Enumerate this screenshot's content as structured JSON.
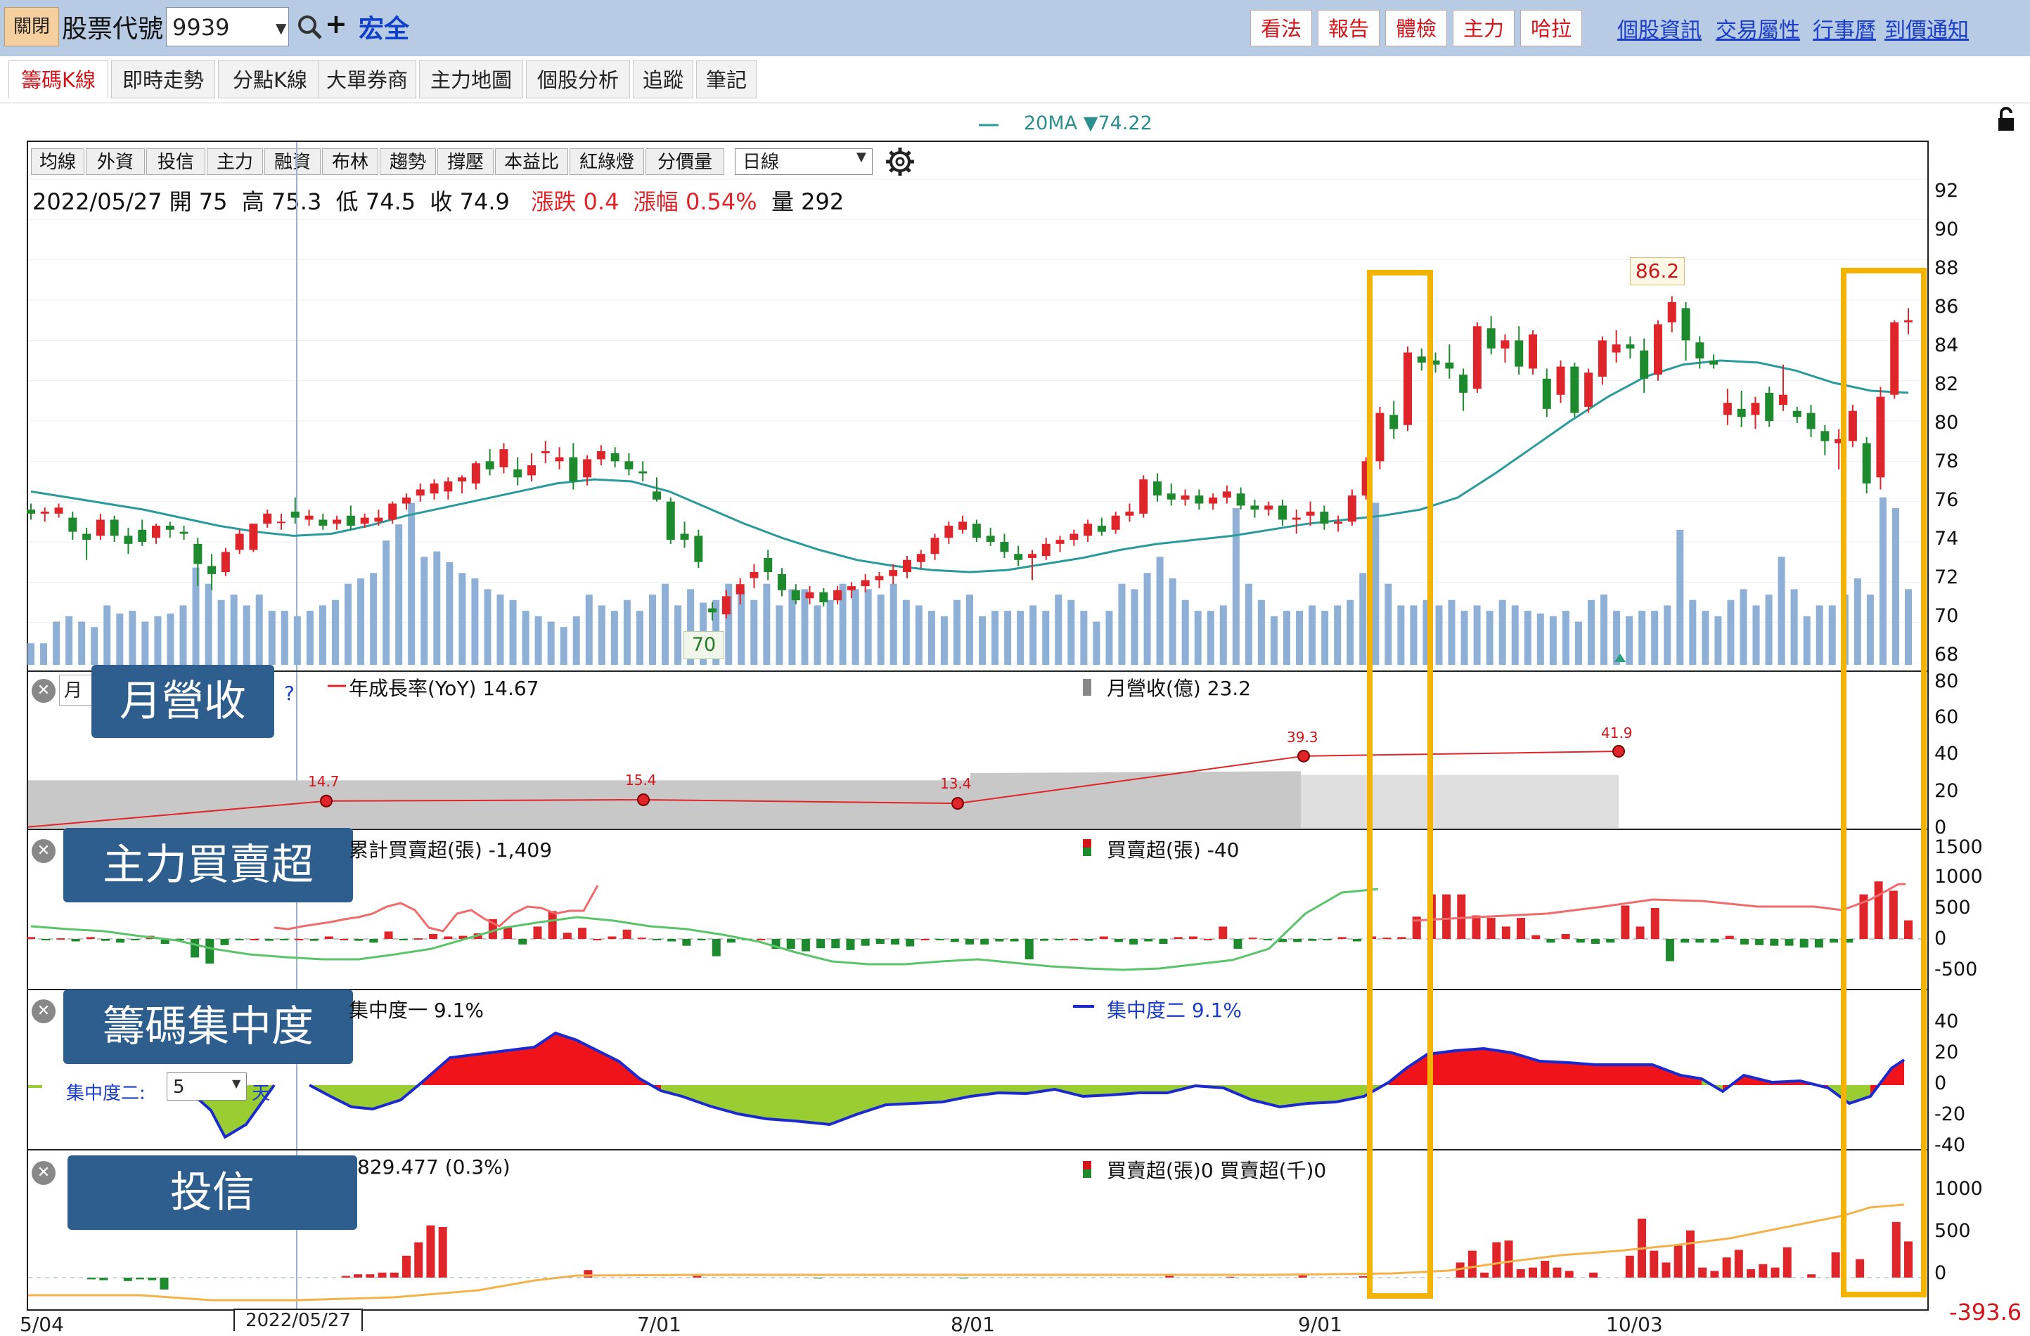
{
  "topbar": {
    "close_label": "關閉",
    "code_label": "股票代號",
    "code_value": "9939",
    "stock_name": "宏全",
    "buttons": [
      "看法",
      "報告",
      "體檢",
      "主力",
      "哈拉"
    ],
    "links": [
      "個股資訊",
      "交易屬性",
      "行事曆",
      "到價通知"
    ]
  },
  "tabs": [
    "籌碼K線",
    "即時走勢",
    "分點K線",
    "大單券商",
    "主力地圖",
    "個股分析",
    "追蹤",
    "筆記"
  ],
  "active_tab": "籌碼K線",
  "ma": {
    "label": "20MA ▼74.22"
  },
  "toolbar": {
    "buttons": [
      "均線",
      "外資",
      "投信",
      "主力",
      "融資",
      "布林",
      "趨勢",
      "撐壓",
      "本益比",
      "紅綠燈",
      "分價量"
    ],
    "period": "日線"
  },
  "info": {
    "date": "2022/05/27",
    "open_label": "開",
    "open": "75",
    "high_label": "高",
    "high": "75.3",
    "low_label": "低",
    "low": "74.5",
    "close_label": "收",
    "close": "74.9",
    "change": "漲跌 0.4",
    "change_pct": "漲幅 0.54%",
    "volume_label": "量",
    "volume": "292"
  },
  "annotations": {
    "max_price": "86.2",
    "min_price": "70"
  },
  "price_axis": [
    "92",
    "90",
    "88",
    "86",
    "84",
    "82",
    "80",
    "78",
    "76",
    "74",
    "72",
    "70",
    "68"
  ],
  "revenue": {
    "label": "月營收",
    "legend_yoy": "年成長率(YoY) 14.67",
    "legend_rev": "月營收(億) 23.2",
    "axis": [
      "80",
      "60",
      "40",
      "20",
      "0"
    ],
    "points": [
      {
        "label": "14.7",
        "value": 14.7
      },
      {
        "label": "15.4",
        "value": 15.4
      },
      {
        "label": "13.4",
        "value": 13.4
      },
      {
        "label": "39.3",
        "value": 39.3
      },
      {
        "label": "41.9",
        "value": 41.9
      }
    ],
    "dropdown_prefix": "月",
    "help": "?"
  },
  "main_force": {
    "label": "主力買賣超",
    "legend_cum": "累計買賣超(張) -1,409",
    "legend_daily": "買賣超(張) -40",
    "axis": [
      "1500",
      "1000",
      "500",
      "0",
      "-500"
    ]
  },
  "concentration": {
    "label": "籌碼集中度",
    "legend_1": "集中度一 9.1%",
    "legend_2": "集中度二 9.1%",
    "select_label": "集中度二:",
    "select_value": "5",
    "unit": "天",
    "axis": [
      "40",
      "20",
      "0",
      "-20",
      "-40"
    ]
  },
  "trust": {
    "label": "投信",
    "legend_left": "829.477 (0.3%)",
    "legend_right": "買賣超(張)0 買賣超(千)0",
    "axis": [
      "1000",
      "500",
      "0"
    ],
    "last_value": "-393.6"
  },
  "x_axis": [
    "5/04",
    "2022/05/27",
    "7/01",
    "8/01",
    "9/01",
    "10/03"
  ],
  "colors": {
    "up": "#e0252a",
    "down": "#1e8a2e",
    "ma": "#2b9a9a",
    "volume": "#8fb0d6",
    "highlight": "#f2b400",
    "label_bg": "#2e5e8e"
  },
  "chart_data": {
    "type": "candlestick",
    "ylim": [
      67.5,
      92.5
    ],
    "candles": [
      {
        "o": 75.6,
        "h": 75.9,
        "l": 75.1,
        "c": 75.4
      },
      {
        "o": 75.4,
        "h": 75.7,
        "l": 75.0,
        "c": 75.5
      },
      {
        "o": 75.4,
        "h": 75.9,
        "l": 75.2,
        "c": 75.7
      },
      {
        "o": 75.2,
        "h": 75.5,
        "l": 74.1,
        "c": 74.5
      },
      {
        "o": 74.4,
        "h": 74.7,
        "l": 73.1,
        "c": 74.1
      },
      {
        "o": 74.3,
        "h": 75.4,
        "l": 74.1,
        "c": 75.1
      },
      {
        "o": 75.1,
        "h": 75.3,
        "l": 74.0,
        "c": 74.3
      },
      {
        "o": 74.3,
        "h": 74.7,
        "l": 73.4,
        "c": 73.9
      },
      {
        "o": 74.6,
        "h": 75.1,
        "l": 73.8,
        "c": 74.0
      },
      {
        "o": 74.2,
        "h": 74.9,
        "l": 73.9,
        "c": 74.8
      },
      {
        "o": 74.8,
        "h": 75.0,
        "l": 74.2,
        "c": 74.6
      },
      {
        "o": 74.5,
        "h": 74.8,
        "l": 74.1,
        "c": 74.4
      },
      {
        "o": 73.9,
        "h": 74.2,
        "l": 71.8,
        "c": 72.9
      },
      {
        "o": 72.8,
        "h": 73.4,
        "l": 71.6,
        "c": 72.4
      },
      {
        "o": 72.5,
        "h": 73.7,
        "l": 72.3,
        "c": 73.5
      },
      {
        "o": 73.6,
        "h": 74.6,
        "l": 73.4,
        "c": 74.4
      },
      {
        "o": 73.6,
        "h": 74.9,
        "l": 73.5,
        "c": 74.9
      },
      {
        "o": 74.9,
        "h": 75.6,
        "l": 74.7,
        "c": 75.4
      },
      {
        "o": 75.0,
        "h": 75.4,
        "l": 74.6,
        "c": 75.0
      },
      {
        "o": 75.5,
        "h": 76.2,
        "l": 74.9,
        "c": 75.2
      },
      {
        "o": 75.1,
        "h": 75.6,
        "l": 74.8,
        "c": 75.3
      },
      {
        "o": 75.1,
        "h": 75.4,
        "l": 74.6,
        "c": 74.8
      },
      {
        "o": 74.9,
        "h": 75.3,
        "l": 74.6,
        "c": 75.1
      },
      {
        "o": 75.3,
        "h": 75.8,
        "l": 74.6,
        "c": 74.8
      },
      {
        "o": 74.9,
        "h": 75.4,
        "l": 74.7,
        "c": 75.2
      },
      {
        "o": 75.0,
        "h": 75.6,
        "l": 74.8,
        "c": 75.2
      },
      {
        "o": 75.1,
        "h": 76.0,
        "l": 74.9,
        "c": 75.9
      },
      {
        "o": 75.9,
        "h": 76.4,
        "l": 75.6,
        "c": 76.2
      },
      {
        "o": 76.3,
        "h": 76.9,
        "l": 76.0,
        "c": 76.6
      },
      {
        "o": 76.4,
        "h": 77.1,
        "l": 76.1,
        "c": 76.9
      },
      {
        "o": 76.5,
        "h": 77.2,
        "l": 76.1,
        "c": 77.0
      },
      {
        "o": 77.0,
        "h": 77.3,
        "l": 76.4,
        "c": 77.2
      },
      {
        "o": 76.9,
        "h": 78.0,
        "l": 76.6,
        "c": 77.9
      },
      {
        "o": 78.0,
        "h": 78.6,
        "l": 77.3,
        "c": 77.6
      },
      {
        "o": 77.7,
        "h": 78.9,
        "l": 77.4,
        "c": 78.6
      },
      {
        "o": 77.6,
        "h": 78.2,
        "l": 76.8,
        "c": 77.2
      },
      {
        "o": 77.3,
        "h": 78.4,
        "l": 77.0,
        "c": 77.8
      },
      {
        "o": 78.4,
        "h": 79.0,
        "l": 77.9,
        "c": 78.5
      },
      {
        "o": 78.0,
        "h": 78.7,
        "l": 77.6,
        "c": 78.2
      },
      {
        "o": 78.2,
        "h": 78.9,
        "l": 76.6,
        "c": 77.0
      },
      {
        "o": 77.2,
        "h": 78.3,
        "l": 76.8,
        "c": 78.1
      },
      {
        "o": 78.1,
        "h": 78.8,
        "l": 77.8,
        "c": 78.5
      },
      {
        "o": 78.4,
        "h": 78.7,
        "l": 77.7,
        "c": 78.0
      },
      {
        "o": 78.0,
        "h": 78.4,
        "l": 77.3,
        "c": 77.6
      },
      {
        "o": 77.5,
        "h": 78.0,
        "l": 77.0,
        "c": 77.4
      },
      {
        "o": 76.5,
        "h": 77.2,
        "l": 76.0,
        "c": 76.1
      },
      {
        "o": 76.0,
        "h": 76.2,
        "l": 73.9,
        "c": 74.1
      },
      {
        "o": 74.4,
        "h": 75.0,
        "l": 73.7,
        "c": 74.1
      },
      {
        "o": 74.3,
        "h": 74.6,
        "l": 72.7,
        "c": 73.0
      },
      {
        "o": 70.7,
        "h": 71.0,
        "l": 70.1,
        "c": 70.5
      },
      {
        "o": 70.4,
        "h": 71.6,
        "l": 70.2,
        "c": 71.3
      },
      {
        "o": 71.4,
        "h": 72.2,
        "l": 70.9,
        "c": 71.9
      },
      {
        "o": 72.2,
        "h": 72.9,
        "l": 71.7,
        "c": 72.5
      },
      {
        "o": 73.2,
        "h": 73.6,
        "l": 72.1,
        "c": 72.5
      },
      {
        "o": 72.4,
        "h": 72.7,
        "l": 71.3,
        "c": 71.6
      },
      {
        "o": 71.6,
        "h": 71.9,
        "l": 70.9,
        "c": 71.1
      },
      {
        "o": 71.2,
        "h": 71.8,
        "l": 70.9,
        "c": 71.5
      },
      {
        "o": 71.5,
        "h": 71.7,
        "l": 70.8,
        "c": 71.0
      },
      {
        "o": 71.1,
        "h": 71.8,
        "l": 70.9,
        "c": 71.6
      },
      {
        "o": 71.6,
        "h": 72.0,
        "l": 71.2,
        "c": 71.8
      },
      {
        "o": 71.8,
        "h": 72.4,
        "l": 71.5,
        "c": 72.1
      },
      {
        "o": 72.1,
        "h": 72.5,
        "l": 71.7,
        "c": 72.3
      },
      {
        "o": 72.3,
        "h": 72.9,
        "l": 71.9,
        "c": 72.6
      },
      {
        "o": 72.5,
        "h": 73.3,
        "l": 72.2,
        "c": 73.1
      },
      {
        "o": 73.0,
        "h": 73.6,
        "l": 72.7,
        "c": 73.4
      },
      {
        "o": 73.4,
        "h": 74.4,
        "l": 73.1,
        "c": 74.2
      },
      {
        "o": 74.2,
        "h": 75.0,
        "l": 73.9,
        "c": 74.8
      },
      {
        "o": 74.6,
        "h": 75.3,
        "l": 74.4,
        "c": 75.0
      },
      {
        "o": 74.9,
        "h": 75.1,
        "l": 74.0,
        "c": 74.2
      },
      {
        "o": 74.3,
        "h": 74.7,
        "l": 73.8,
        "c": 74.0
      },
      {
        "o": 74.0,
        "h": 74.4,
        "l": 73.2,
        "c": 73.5
      },
      {
        "o": 73.4,
        "h": 73.8,
        "l": 72.8,
        "c": 73.1
      },
      {
        "o": 73.2,
        "h": 73.6,
        "l": 72.1,
        "c": 73.4
      },
      {
        "o": 73.3,
        "h": 74.2,
        "l": 73.1,
        "c": 73.9
      },
      {
        "o": 73.9,
        "h": 74.3,
        "l": 73.5,
        "c": 74.1
      },
      {
        "o": 74.1,
        "h": 74.6,
        "l": 73.8,
        "c": 74.4
      },
      {
        "o": 74.3,
        "h": 75.1,
        "l": 74.0,
        "c": 74.9
      },
      {
        "o": 74.8,
        "h": 75.2,
        "l": 74.3,
        "c": 74.5
      },
      {
        "o": 74.6,
        "h": 75.5,
        "l": 74.4,
        "c": 75.3
      },
      {
        "o": 75.3,
        "h": 75.9,
        "l": 75.0,
        "c": 75.5
      },
      {
        "o": 75.4,
        "h": 77.3,
        "l": 75.2,
        "c": 77.1
      },
      {
        "o": 77.0,
        "h": 77.4,
        "l": 76.0,
        "c": 76.3
      },
      {
        "o": 76.4,
        "h": 76.9,
        "l": 75.8,
        "c": 76.1
      },
      {
        "o": 76.1,
        "h": 76.6,
        "l": 75.8,
        "c": 76.3
      },
      {
        "o": 76.3,
        "h": 76.6,
        "l": 75.6,
        "c": 75.9
      },
      {
        "o": 75.9,
        "h": 76.4,
        "l": 75.6,
        "c": 76.2
      },
      {
        "o": 76.2,
        "h": 76.8,
        "l": 75.9,
        "c": 76.5
      },
      {
        "o": 76.4,
        "h": 76.7,
        "l": 75.6,
        "c": 75.8
      },
      {
        "o": 75.8,
        "h": 76.1,
        "l": 75.2,
        "c": 75.6
      },
      {
        "o": 75.6,
        "h": 76.0,
        "l": 75.3,
        "c": 75.8
      },
      {
        "o": 75.8,
        "h": 76.1,
        "l": 74.8,
        "c": 75.1
      },
      {
        "o": 75.1,
        "h": 75.6,
        "l": 74.4,
        "c": 75.2
      },
      {
        "o": 75.3,
        "h": 76.0,
        "l": 74.8,
        "c": 75.5
      },
      {
        "o": 75.5,
        "h": 75.8,
        "l": 74.6,
        "c": 74.9
      },
      {
        "o": 74.9,
        "h": 75.3,
        "l": 74.5,
        "c": 75.0
      },
      {
        "o": 75.0,
        "h": 76.6,
        "l": 74.8,
        "c": 76.3
      },
      {
        "o": 76.3,
        "h": 78.2,
        "l": 76.1,
        "c": 78.0
      },
      {
        "o": 78.0,
        "h": 80.7,
        "l": 77.6,
        "c": 80.4
      },
      {
        "o": 80.3,
        "h": 81.0,
        "l": 79.1,
        "c": 79.6
      },
      {
        "o": 79.8,
        "h": 83.7,
        "l": 79.5,
        "c": 83.4
      },
      {
        "o": 83.2,
        "h": 83.6,
        "l": 82.5,
        "c": 82.9
      },
      {
        "o": 83.0,
        "h": 83.4,
        "l": 82.4,
        "c": 82.8
      },
      {
        "o": 82.9,
        "h": 83.8,
        "l": 82.1,
        "c": 82.6
      },
      {
        "o": 82.3,
        "h": 82.6,
        "l": 80.5,
        "c": 81.4
      },
      {
        "o": 81.6,
        "h": 84.9,
        "l": 81.4,
        "c": 84.7
      },
      {
        "o": 84.6,
        "h": 85.2,
        "l": 83.3,
        "c": 83.6
      },
      {
        "o": 83.6,
        "h": 84.3,
        "l": 82.9,
        "c": 84.0
      },
      {
        "o": 84.0,
        "h": 84.7,
        "l": 82.3,
        "c": 82.7
      },
      {
        "o": 82.6,
        "h": 84.5,
        "l": 82.3,
        "c": 84.3
      },
      {
        "o": 82.1,
        "h": 82.6,
        "l": 80.2,
        "c": 80.6
      },
      {
        "o": 81.3,
        "h": 83.0,
        "l": 80.9,
        "c": 82.7
      },
      {
        "o": 82.7,
        "h": 82.9,
        "l": 80.2,
        "c": 80.4
      },
      {
        "o": 80.7,
        "h": 82.6,
        "l": 80.4,
        "c": 82.4
      },
      {
        "o": 82.2,
        "h": 84.2,
        "l": 81.8,
        "c": 84.0
      },
      {
        "o": 83.4,
        "h": 84.5,
        "l": 82.9,
        "c": 83.8
      },
      {
        "o": 83.8,
        "h": 84.2,
        "l": 83.1,
        "c": 83.6
      },
      {
        "o": 83.5,
        "h": 84.1,
        "l": 81.4,
        "c": 82.1
      },
      {
        "o": 82.3,
        "h": 85.0,
        "l": 82.0,
        "c": 84.8
      },
      {
        "o": 84.9,
        "h": 86.2,
        "l": 84.4,
        "c": 85.9
      },
      {
        "o": 85.6,
        "h": 85.9,
        "l": 83.0,
        "c": 84.0
      },
      {
        "o": 83.9,
        "h": 84.2,
        "l": 82.6,
        "c": 83.1
      },
      {
        "o": 83.0,
        "h": 83.3,
        "l": 82.6,
        "c": 82.8
      },
      {
        "o": 80.3,
        "h": 81.6,
        "l": 79.8,
        "c": 80.9
      },
      {
        "o": 80.6,
        "h": 81.5,
        "l": 79.7,
        "c": 80.2
      },
      {
        "o": 80.3,
        "h": 81.2,
        "l": 79.6,
        "c": 80.9
      },
      {
        "o": 81.4,
        "h": 81.7,
        "l": 79.7,
        "c": 80.0
      },
      {
        "o": 80.8,
        "h": 82.8,
        "l": 80.5,
        "c": 81.3
      },
      {
        "o": 80.5,
        "h": 80.7,
        "l": 79.9,
        "c": 80.2
      },
      {
        "o": 80.4,
        "h": 80.8,
        "l": 79.2,
        "c": 79.6
      },
      {
        "o": 79.5,
        "h": 79.8,
        "l": 78.3,
        "c": 79.0
      },
      {
        "o": 78.9,
        "h": 79.6,
        "l": 77.6,
        "c": 79.1
      },
      {
        "o": 79.0,
        "h": 80.8,
        "l": 78.7,
        "c": 80.5
      },
      {
        "o": 78.9,
        "h": 79.2,
        "l": 76.4,
        "c": 76.9
      },
      {
        "o": 77.2,
        "h": 81.7,
        "l": 76.6,
        "c": 81.2
      },
      {
        "o": 81.3,
        "h": 85.0,
        "l": 81.1,
        "c": 84.9
      },
      {
        "o": 84.9,
        "h": 85.6,
        "l": 84.3,
        "c": 85.0
      }
    ],
    "ma20": [
      76.5,
      76.2,
      75.9,
      75.6,
      75.2,
      74.8,
      74.5,
      74.3,
      74.4,
      74.8,
      75.3,
      75.7,
      76.1,
      76.5,
      76.9,
      77.1,
      77.0,
      76.5,
      75.7,
      74.9,
      74.2,
      73.6,
      73.1,
      72.8,
      72.6,
      72.5,
      72.6,
      72.9,
      73.2,
      73.6,
      73.9,
      74.1,
      74.3,
      74.6,
      74.9,
      75.1,
      75.3,
      75.6,
      76.2,
      77.4,
      78.7,
      80.0,
      81.2,
      82.2,
      82.8,
      83.0,
      82.9,
      82.5,
      81.9,
      81.5,
      81.4
    ],
    "volume": [
      40,
      40,
      80,
      90,
      80,
      70,
      110,
      95,
      100,
      80,
      90,
      95,
      110,
      180,
      150,
      120,
      130,
      110,
      130,
      100,
      100,
      90,
      100,
      110,
      120,
      150,
      160,
      170,
      230,
      260,
      300,
      200,
      210,
      190,
      170,
      160,
      140,
      130,
      120,
      100,
      90,
      80,
      70,
      90,
      130,
      110,
      100,
      120,
      100,
      130,
      150,
      110,
      140,
      115,
      120,
      150,
      140,
      120,
      150,
      110,
      140,
      140,
      110,
      120,
      150,
      140,
      140,
      130,
      150,
      120,
      110,
      100,
      90,
      120,
      130,
      90,
      100,
      100,
      100,
      110,
      100,
      130,
      120,
      100,
      80,
      100,
      150,
      140,
      170,
      200,
      160,
      120,
      100,
      100,
      110,
      290,
      150,
      120,
      90,
      100,
      100,
      110,
      100,
      110,
      120,
      170,
      300,
      150,
      110,
      110,
      120,
      110,
      120,
      100,
      110,
      100,
      120,
      110,
      100,
      95,
      90,
      100,
      80,
      120,
      130,
      100,
      90,
      100,
      100,
      110,
      250,
      120,
      100,
      90,
      120,
      140,
      110,
      130,
      200,
      140,
      90,
      110,
      110,
      130,
      160,
      130,
      310,
      290,
      140
    ],
    "revenue_yoy": [
      {
        "x": "5/27",
        "y": 14.7
      },
      {
        "x": "6",
        "y": 15.4
      },
      {
        "x": "7",
        "y": 13.4
      },
      {
        "x": "8",
        "y": 39.3
      },
      {
        "x": "9",
        "y": 41.9
      }
    ]
  }
}
